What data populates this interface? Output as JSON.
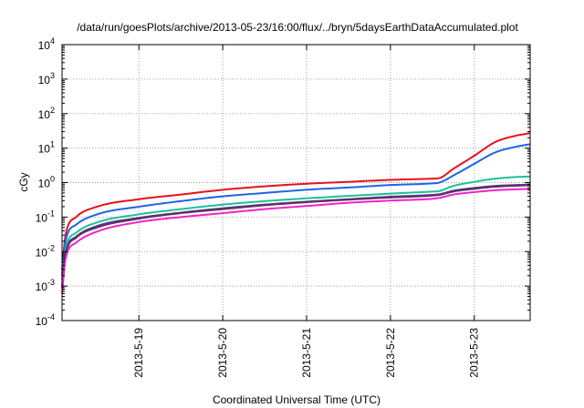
{
  "chart_data": {
    "type": "line",
    "title": "/data/run/goesPlots/archive/2013-05-23/16:00/flux/../bryn/5daysEarthDataAccumulated.plot",
    "xlabel": "Coordinated Universal Time (UTC)",
    "ylabel": "cGy",
    "y_scale": "log",
    "xlim": [
      "2013-05-18 02:00",
      "2013-05-23 16:00"
    ],
    "ylim": [
      0.0001,
      10000
    ],
    "grid": true,
    "legend": "none",
    "x_ticks": [
      "2013-5-19",
      "2013-5-20",
      "2013-5-21",
      "2013-5-22",
      "2013-5-23"
    ],
    "y_ticks": [
      {
        "value": 0.0001,
        "base": "10",
        "exp": "-4"
      },
      {
        "value": 0.001,
        "base": "10",
        "exp": "-3"
      },
      {
        "value": 0.01,
        "base": "10",
        "exp": "-2"
      },
      {
        "value": 0.1,
        "base": "10",
        "exp": "-1"
      },
      {
        "value": 1,
        "base": "10",
        "exp": "0"
      },
      {
        "value": 10,
        "base": "10",
        "exp": "1"
      },
      {
        "value": 100,
        "base": "10",
        "exp": "2"
      },
      {
        "value": 1000,
        "base": "10",
        "exp": "3"
      },
      {
        "value": 10000,
        "base": "10",
        "exp": "4"
      }
    ],
    "x": [
      "2013-05-18 02:00",
      "2013-05-18 03:00",
      "2013-05-18 06:00",
      "2013-05-18 12:00",
      "2013-05-19 00:00",
      "2013-05-19 12:00",
      "2013-05-20 00:00",
      "2013-05-20 12:00",
      "2013-05-21 00:00",
      "2013-05-21 12:00",
      "2013-05-22 00:00",
      "2013-05-22 12:00",
      "2013-05-22 14:00",
      "2013-05-22 18:00",
      "2013-05-23 00:00",
      "2013-05-23 06:00",
      "2013-05-23 12:00",
      "2013-05-23 16:00"
    ],
    "series": [
      {
        "color": "#e8101e",
        "values": [
          0.003,
          0.03,
          0.1,
          0.2,
          0.33,
          0.45,
          0.62,
          0.78,
          0.93,
          1.05,
          1.2,
          1.3,
          1.35,
          2.5,
          6.0,
          15.0,
          23.0,
          27.0
        ]
      },
      {
        "color": "#1f64e6",
        "values": [
          0.002,
          0.02,
          0.06,
          0.12,
          0.2,
          0.29,
          0.4,
          0.5,
          0.62,
          0.72,
          0.85,
          0.95,
          1.0,
          1.6,
          3.5,
          7.5,
          11.0,
          13.0
        ]
      },
      {
        "color": "#1cc09a",
        "values": [
          0.0015,
          0.012,
          0.035,
          0.07,
          0.12,
          0.17,
          0.23,
          0.29,
          0.35,
          0.41,
          0.48,
          0.55,
          0.57,
          0.8,
          1.05,
          1.3,
          1.45,
          1.5
        ]
      },
      {
        "color": "#3d3f9c",
        "values": [
          0.001,
          0.009,
          0.027,
          0.055,
          0.095,
          0.135,
          0.18,
          0.23,
          0.28,
          0.33,
          0.39,
          0.44,
          0.46,
          0.58,
          0.7,
          0.8,
          0.85,
          0.88
        ]
      },
      {
        "color": "#6a2f58",
        "values": [
          0.0009,
          0.008,
          0.025,
          0.05,
          0.09,
          0.13,
          0.17,
          0.22,
          0.27,
          0.32,
          0.37,
          0.42,
          0.44,
          0.55,
          0.66,
          0.76,
          0.81,
          0.84
        ]
      },
      {
        "color": "#ee22cc",
        "values": [
          0.0006,
          0.006,
          0.018,
          0.038,
          0.072,
          0.1,
          0.13,
          0.17,
          0.21,
          0.26,
          0.3,
          0.34,
          0.36,
          0.45,
          0.53,
          0.6,
          0.64,
          0.66
        ]
      }
    ]
  }
}
